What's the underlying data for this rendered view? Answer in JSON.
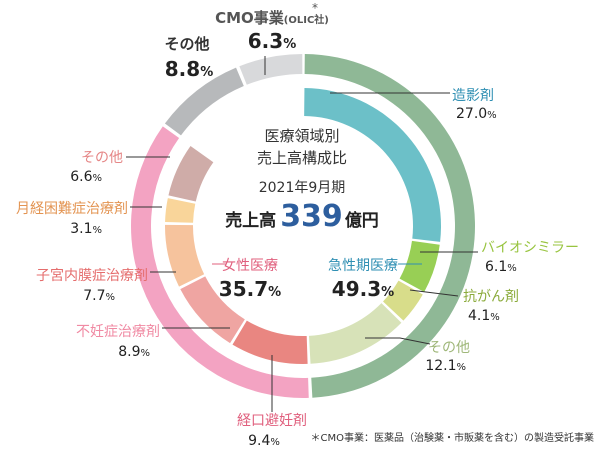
{
  "chart_data": {
    "type": "pie",
    "title_line1": "医療領域別",
    "title_line2": "売上高構成比",
    "period": "2021年9月期",
    "total_label": "売上高",
    "total_value": "339",
    "total_unit": "億円",
    "footnote": "＊CMO事業：医薬品（治験薬・市販薬を含む）の製造受託事業",
    "segments": [
      {
        "name": "造影剤",
        "value": 27.0,
        "display": "27.0",
        "ring": "outer",
        "color": "#8fb896"
      },
      {
        "name": "バイオシミラー",
        "value": 6.1,
        "display": "6.1",
        "ring": "outer",
        "color": "#8fb896"
      },
      {
        "name": "抗がん剤",
        "value": 4.1,
        "display": "4.1",
        "ring": "outer",
        "color": "#8fb896"
      },
      {
        "name": "その他",
        "value": 12.1,
        "display": "12.1",
        "ring": "outer",
        "color": "#8fb896"
      },
      {
        "name": "経口避妊剤",
        "value": 9.4,
        "display": "9.4",
        "ring": "outer",
        "color": "#f3a3c2"
      },
      {
        "name": "不妊症治療剤",
        "value": 8.9,
        "display": "8.9",
        "ring": "outer",
        "color": "#f3a3c2"
      },
      {
        "name": "子宮内膜症治療剤",
        "value": 7.7,
        "display": "7.7",
        "ring": "outer",
        "color": "#f3a3c2"
      },
      {
        "name": "月経困難症治療剤",
        "value": 3.1,
        "display": "3.1",
        "ring": "outer",
        "color": "#f3a3c2"
      },
      {
        "name": "その他",
        "value": 6.6,
        "display": "6.6",
        "ring": "outer",
        "color": "#f3a3c2"
      },
      {
        "name": "その他",
        "value": 8.8,
        "display": "8.8",
        "ring": "outer",
        "color": "#b7b9bb"
      },
      {
        "name": "CMO事業",
        "suffix": "(OLIC社)",
        "value": 6.3,
        "display": "6.3",
        "ring": "outer",
        "color": "#d8d9db"
      }
    ],
    "categories": [
      {
        "name": "急性期医療",
        "value": 49.3,
        "display": "49.3",
        "color": "#8fb896",
        "label_color": "#2f8fb3"
      },
      {
        "name": "女性医療",
        "value": 35.7,
        "display": "35.7",
        "color": "#f3a3c2",
        "label_color": "#e0607e"
      },
      {
        "name": "その他",
        "value": 8.8,
        "display": "8.8",
        "color": "#b7b9bb",
        "label_color": "#333333"
      },
      {
        "name": "CMO事業",
        "value": 6.3,
        "display": "6.3",
        "color": "#d8d9db",
        "label_color": "#333333"
      }
    ],
    "inner_colors": [
      "#6cc0c8",
      "#98cf55",
      "#d8dd8a",
      "#d7e2b8",
      "#e98681",
      "#efa5a2",
      "#f6c39d",
      "#f9d59a",
      "#cfaca8"
    ],
    "percent_sign": "%"
  }
}
